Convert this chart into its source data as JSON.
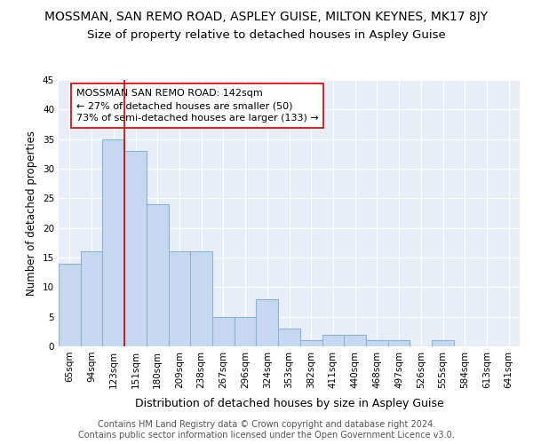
{
  "title": "MOSSMAN, SAN REMO ROAD, ASPLEY GUISE, MILTON KEYNES, MK17 8JY",
  "subtitle": "Size of property relative to detached houses in Aspley Guise",
  "xlabel": "Distribution of detached houses by size in Aspley Guise",
  "ylabel": "Number of detached properties",
  "categories": [
    "65sqm",
    "94sqm",
    "123sqm",
    "151sqm",
    "180sqm",
    "209sqm",
    "238sqm",
    "267sqm",
    "296sqm",
    "324sqm",
    "353sqm",
    "382sqm",
    "411sqm",
    "440sqm",
    "468sqm",
    "497sqm",
    "526sqm",
    "555sqm",
    "584sqm",
    "613sqm",
    "641sqm"
  ],
  "values": [
    14,
    16,
    35,
    33,
    24,
    16,
    16,
    5,
    5,
    8,
    3,
    1,
    2,
    2,
    1,
    1,
    0,
    1,
    0,
    0,
    0
  ],
  "bar_color": "#c5d8ef",
  "bar_edge_color": "#8ab4d9",
  "marker_color": "#cc0000",
  "annotation_title": "MOSSMAN SAN REMO ROAD: 142sqm",
  "annotation_line1": "← 27% of detached houses are smaller (50)",
  "annotation_line2": "73% of semi-detached houses are larger (133) →",
  "ylim": [
    0,
    45
  ],
  "yticks": [
    0,
    5,
    10,
    15,
    20,
    25,
    30,
    35,
    40,
    45
  ],
  "footer_line1": "Contains HM Land Registry data © Crown copyright and database right 2024.",
  "footer_line2": "Contains public sector information licensed under the Open Government Licence v3.0.",
  "background_color": "#e8eef7",
  "grid_color": "#ffffff",
  "title_fontsize": 10,
  "subtitle_fontsize": 9.5,
  "xlabel_fontsize": 9,
  "ylabel_fontsize": 8.5,
  "tick_fontsize": 7.5,
  "annotation_fontsize": 8,
  "footer_fontsize": 7
}
